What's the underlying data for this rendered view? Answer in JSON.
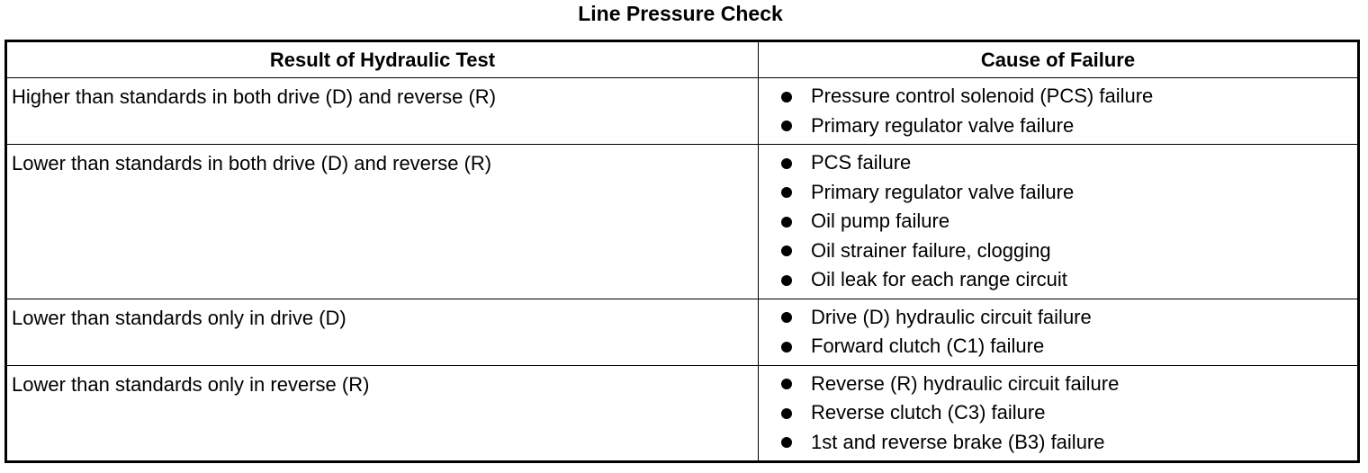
{
  "title": "Line Pressure Check",
  "table": {
    "headers": [
      "Result of Hydraulic Test",
      "Cause of Failure"
    ],
    "rows": [
      {
        "result": "Higher than standards in both drive (D) and reverse (R)",
        "causes": [
          "Pressure control solenoid (PCS) failure",
          "Primary regulator valve failure"
        ]
      },
      {
        "result": "Lower than standards in both drive (D) and reverse (R)",
        "causes": [
          "PCS failure",
          "Primary regulator valve failure",
          "Oil pump failure",
          "Oil strainer failure, clogging",
          "Oil leak for each range circuit"
        ]
      },
      {
        "result": "Lower than standards only in drive (D)",
        "causes": [
          "Drive (D) hydraulic circuit failure",
          "Forward clutch (C1) failure"
        ]
      },
      {
        "result": "Lower than standards only in reverse (R)",
        "causes": [
          "Reverse (R) hydraulic circuit failure",
          "Reverse clutch (C3) failure",
          "1st and reverse brake (B3) failure"
        ]
      }
    ]
  }
}
